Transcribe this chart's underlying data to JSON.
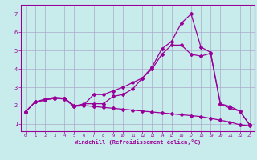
{
  "xlabel": "Windchill (Refroidissement éolien,°C)",
  "bg_color": "#c8ecec",
  "grid_color": "#aaaacc",
  "line_color": "#990099",
  "spine_color": "#660066",
  "xlim": [
    -0.5,
    23.5
  ],
  "ylim": [
    0.6,
    7.5
  ],
  "xticks": [
    0,
    1,
    2,
    3,
    4,
    5,
    6,
    7,
    8,
    9,
    10,
    11,
    12,
    13,
    14,
    15,
    16,
    17,
    18,
    19,
    20,
    21,
    22,
    23
  ],
  "yticks": [
    1,
    2,
    3,
    4,
    5,
    6,
    7
  ],
  "line1_x": [
    0,
    1,
    2,
    3,
    4,
    5,
    6,
    7,
    8,
    9,
    10,
    11,
    12,
    13,
    14,
    15,
    16,
    17,
    18,
    19,
    20,
    21,
    22,
    23
  ],
  "line1_y": [
    1.65,
    2.2,
    2.3,
    2.4,
    2.35,
    1.95,
    2.1,
    2.1,
    2.1,
    2.5,
    2.6,
    2.9,
    3.5,
    4.1,
    5.1,
    5.5,
    6.5,
    7.0,
    5.2,
    4.9,
    2.1,
    1.85,
    1.7,
    0.95
  ],
  "line2_x": [
    0,
    1,
    2,
    3,
    4,
    5,
    6,
    7,
    8,
    9,
    10,
    11,
    12,
    13,
    14,
    15,
    16,
    17,
    18,
    19,
    20,
    21,
    22,
    23
  ],
  "line2_y": [
    1.65,
    2.2,
    2.35,
    2.45,
    2.4,
    2.0,
    2.05,
    2.6,
    2.6,
    2.8,
    3.0,
    3.25,
    3.5,
    4.0,
    4.8,
    5.3,
    5.3,
    4.8,
    4.7,
    4.85,
    2.1,
    1.95,
    1.7,
    0.95
  ],
  "line3_x": [
    0,
    1,
    2,
    3,
    4,
    5,
    6,
    7,
    8,
    9,
    10,
    11,
    12,
    13,
    14,
    15,
    16,
    17,
    18,
    19,
    20,
    21,
    22,
    23
  ],
  "line3_y": [
    1.65,
    2.2,
    2.3,
    2.4,
    2.4,
    1.95,
    2.0,
    1.95,
    1.9,
    1.85,
    1.8,
    1.75,
    1.7,
    1.65,
    1.6,
    1.55,
    1.5,
    1.45,
    1.4,
    1.3,
    1.2,
    1.1,
    0.95,
    0.9
  ]
}
